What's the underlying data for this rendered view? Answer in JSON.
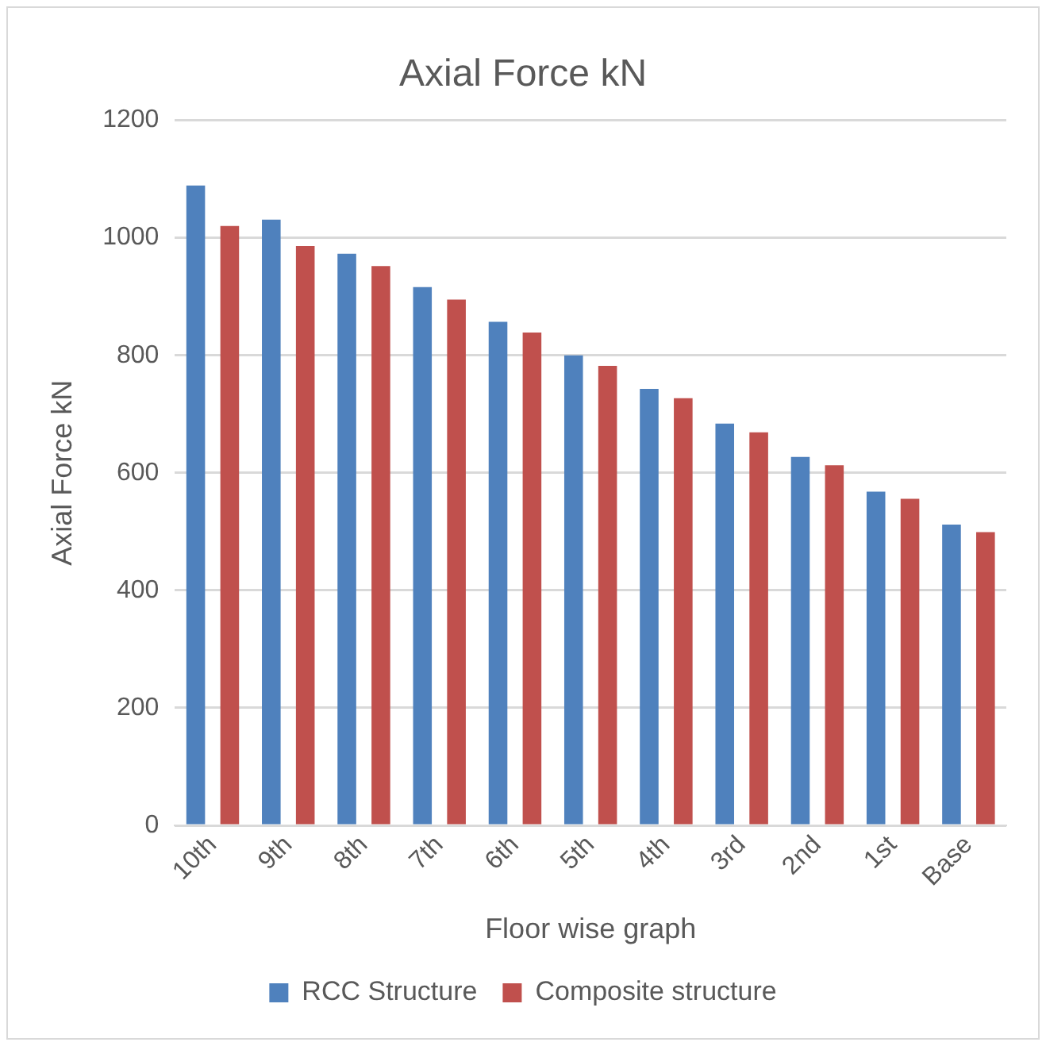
{
  "chart_data": {
    "type": "bar",
    "title": "Axial Force kN",
    "xlabel": "Floor wise graph",
    "ylabel": "Axial Force kN",
    "categories": [
      "10th",
      "9th",
      "8th",
      "7th",
      "6th",
      "5th",
      "4th",
      "3rd",
      "2nd",
      "1st",
      "Base"
    ],
    "series": [
      {
        "name": "RCC Structure",
        "color": "#4f81bd",
        "values": [
          1089,
          1031,
          973,
          916,
          857,
          800,
          743,
          684,
          627,
          568,
          512
        ]
      },
      {
        "name": "Composite structure",
        "color": "#c0504d",
        "values": [
          1020,
          986,
          952,
          895,
          839,
          782,
          727,
          669,
          613,
          556,
          499
        ]
      }
    ],
    "ylim": [
      0,
      1200
    ],
    "yticks": [
      0,
      200,
      400,
      600,
      800,
      1000,
      1200
    ],
    "grid": "y",
    "legend": "bottom"
  }
}
